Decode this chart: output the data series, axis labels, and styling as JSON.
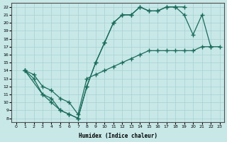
{
  "xlabel": "Humidex (Indice chaleur)",
  "xlim": [
    -0.5,
    23.5
  ],
  "ylim": [
    7.5,
    22.5
  ],
  "xticks": [
    0,
    1,
    2,
    3,
    4,
    5,
    6,
    7,
    8,
    9,
    10,
    11,
    12,
    13,
    14,
    15,
    16,
    17,
    18,
    19,
    20,
    21,
    22,
    23
  ],
  "yticks": [
    8,
    9,
    10,
    11,
    12,
    13,
    14,
    15,
    16,
    17,
    18,
    19,
    20,
    21,
    22
  ],
  "bg_color": "#c8e8e8",
  "grid_color": "#a8d0d0",
  "line_color": "#1a6b5a",
  "line1_x": [
    1,
    2,
    3,
    4,
    5,
    6,
    7,
    8,
    9,
    10,
    11,
    12,
    13,
    14,
    15,
    16,
    17,
    18,
    19
  ],
  "line1_y": [
    14,
    13,
    11,
    10,
    9,
    8.5,
    8,
    12,
    15,
    17.5,
    20,
    21,
    21,
    22,
    21.5,
    21.5,
    22,
    22,
    22
  ],
  "line2_x": [
    1,
    3,
    4,
    5,
    6,
    7,
    8,
    9,
    10,
    11,
    12,
    13,
    14,
    15,
    16,
    17,
    18,
    19,
    20,
    21,
    22
  ],
  "line2_y": [
    14,
    11,
    10.5,
    9,
    8.5,
    8,
    12,
    15,
    17.5,
    20,
    21,
    21,
    22,
    21.5,
    21.5,
    22,
    22,
    21,
    18.5,
    21,
    17
  ],
  "line3_x": [
    1,
    2,
    3,
    4,
    5,
    6,
    7,
    8,
    9,
    10,
    11,
    12,
    13,
    14,
    15,
    16,
    17,
    18,
    19,
    20,
    21,
    22,
    23
  ],
  "line3_y": [
    14,
    13.5,
    12,
    11.5,
    10.5,
    10,
    8.5,
    13,
    13.5,
    14,
    14.5,
    15,
    15.5,
    16,
    16.5,
    16.5,
    16.5,
    16.5,
    16.5,
    16.5,
    17,
    17,
    17
  ]
}
